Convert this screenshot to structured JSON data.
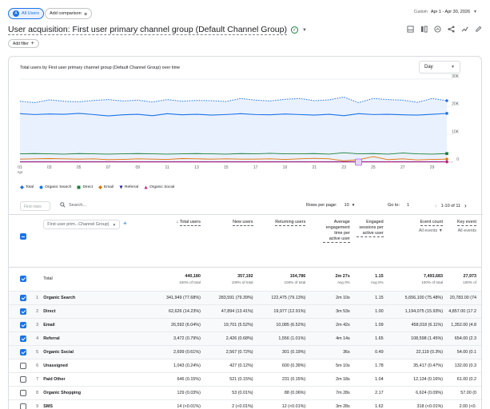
{
  "topbar": {
    "segment_badge": "A",
    "segment_label": "All Users",
    "add_comparison": "Add comparison",
    "date_label": "Custom",
    "date_range": "Apr 1 - Apr 30, 2026"
  },
  "report": {
    "title": "User acquisition: First user primary channel group (Default Channel Group)",
    "add_filter": "Add filter"
  },
  "chart": {
    "title": "Total users by First user primary channel group (Default Channel Group) over time",
    "interval": "Day",
    "y_ticks": [
      "30K",
      "20K",
      "10K",
      "0"
    ],
    "x_ticks": [
      "01",
      "03",
      "05",
      "07",
      "09",
      "11",
      "13",
      "15",
      "17",
      "19",
      "21",
      "23",
      "25",
      "27",
      "29"
    ],
    "x_month": "Apr",
    "annotation_icon": "note-icon",
    "legend": [
      {
        "name": "Total",
        "color": "#1a73e8",
        "shape": "diamond"
      },
      {
        "name": "Organic Search",
        "color": "#1a73e8",
        "shape": "circle"
      },
      {
        "name": "Direct",
        "color": "#188038",
        "shape": "square"
      },
      {
        "name": "Email",
        "color": "#e37400",
        "shape": "diamond"
      },
      {
        "name": "Referral",
        "color": "#1e1e8f",
        "shape": "triangle-down"
      },
      {
        "name": "Organic Social",
        "color": "#d01884",
        "shape": "triangle"
      }
    ]
  },
  "chart_data": {
    "type": "line",
    "x": [
      "01",
      "02",
      "03",
      "04",
      "05",
      "06",
      "07",
      "08",
      "09",
      "10",
      "11",
      "12",
      "13",
      "14",
      "15",
      "16",
      "17",
      "18",
      "19",
      "20",
      "21",
      "22",
      "23",
      "24",
      "25",
      "26",
      "27",
      "28",
      "29",
      "30"
    ],
    "ylim": [
      0,
      30000
    ],
    "series": [
      {
        "name": "Total",
        "values": [
          22000,
          21500,
          22500,
          22000,
          21800,
          22300,
          22600,
          22100,
          22400,
          21700,
          22600,
          22000,
          22300,
          22200,
          21900,
          23000,
          22400,
          22100,
          22700,
          23000,
          22200,
          22500,
          23500,
          21500,
          23000,
          22600,
          22400,
          21600,
          23000,
          22200
        ]
      },
      {
        "name": "Organic Search",
        "values": [
          17500,
          17200,
          17400,
          17300,
          17600,
          17200,
          16700,
          17100,
          17300,
          16800,
          17500,
          17100,
          17300,
          17000,
          17200,
          17500,
          17200,
          17100,
          17400,
          17200,
          17000,
          17300,
          16800,
          17500,
          17200,
          17300,
          17100,
          17000,
          17300,
          17600
        ]
      },
      {
        "name": "Direct",
        "values": [
          3000,
          3100,
          3000,
          2900,
          3100,
          3000,
          2900,
          3000,
          3100,
          3000,
          2900,
          3000,
          3100,
          3000,
          2900,
          3100,
          3000,
          3200,
          3000,
          3000,
          3100,
          2900,
          3400,
          3000,
          3100,
          2900,
          3300,
          3000,
          2900,
          3100
        ]
      },
      {
        "name": "Email",
        "values": [
          1100,
          1200,
          1300,
          1200,
          1100,
          1200,
          900,
          1000,
          1200,
          1100,
          1000,
          1300,
          1200,
          1100,
          1200,
          1100,
          1100,
          1200,
          1000,
          1200,
          1400,
          1200,
          500,
          900,
          2000,
          900,
          1200,
          800,
          1000,
          1100
        ]
      },
      {
        "name": "Referral",
        "values": [
          150,
          160,
          150,
          170,
          160,
          150,
          160,
          170,
          150,
          160,
          150,
          170,
          160,
          150,
          160,
          170,
          150,
          160,
          150,
          170,
          160,
          150,
          200,
          160,
          150,
          160,
          170,
          150,
          160,
          150
        ]
      },
      {
        "name": "Organic Social",
        "values": [
          100,
          90,
          100,
          110,
          90,
          100,
          100,
          90,
          110,
          100,
          90,
          100,
          110,
          90,
          100,
          90,
          110,
          100,
          90,
          100,
          110,
          90,
          100,
          100,
          90,
          110,
          100,
          90,
          100,
          110
        ]
      }
    ]
  },
  "table_controls": {
    "rows_placeholder": "First rows",
    "search_placeholder": "Search...",
    "rows_per_page_label": "Rows per page:",
    "rows_per_page": "10",
    "goto_label": "Go to:",
    "goto_value": "1",
    "page_info": "1-10 of 11"
  },
  "table": {
    "dimension_selector": "First user prim...Channel Group)",
    "columns": [
      {
        "label": "Total users",
        "sub": "",
        "sorted": true
      },
      {
        "label": "New users",
        "sub": ""
      },
      {
        "label": "Returning users",
        "sub": ""
      },
      {
        "label": "Average engagement time per active user",
        "sub": ""
      },
      {
        "label": "Engaged sessions per active user",
        "sub": ""
      },
      {
        "label": "Event count",
        "sub": "All events"
      },
      {
        "label": "Key event",
        "sub": "All events"
      }
    ],
    "total_label": "Total",
    "totals": [
      {
        "v": "440,180",
        "s": "100% of total"
      },
      {
        "v": "357,192",
        "s": "100% of total"
      },
      {
        "v": "154,786",
        "s": "100% of total"
      },
      {
        "v": "2m 27s",
        "s": "Avg 0%"
      },
      {
        "v": "1.15",
        "s": "Avg 0%"
      },
      {
        "v": "7,493,683",
        "s": "100% of total"
      },
      {
        "v": "27,973",
        "s": "100% of"
      }
    ],
    "rows": [
      {
        "n": "1",
        "name": "Organic Search",
        "checked": true,
        "c": [
          "341,949 (77.68%)",
          "283,591 (79.39%)",
          "122,475 (79.13%)",
          "2m 10s",
          "1.15",
          "5,656,100 (75.48%)",
          "20,783.00 (74"
        ]
      },
      {
        "n": "2",
        "name": "Direct",
        "checked": true,
        "c": [
          "62,626 (14.23%)",
          "47,894 (13.41%)",
          "19,977 (12.91%)",
          "3m 53s",
          "1.00",
          "1,194,075 (15.93%)",
          "4,857.00 (17.2"
        ]
      },
      {
        "n": "3",
        "name": "Email",
        "checked": true,
        "c": [
          "26,592 (6.04%)",
          "19,701 (5.52%)",
          "10,085 (6.52%)",
          "2m 42s",
          "1.09",
          "458,018 (6.11%)",
          "1,352.00 (4.8"
        ]
      },
      {
        "n": "4",
        "name": "Referral",
        "checked": true,
        "c": [
          "3,472 (0.79%)",
          "2,426 (0.68%)",
          "1,556 (1.01%)",
          "4m 14s",
          "1.65",
          "108,598 (1.45%)",
          "654.00 (2.3"
        ]
      },
      {
        "n": "5",
        "name": "Organic Social",
        "checked": true,
        "c": [
          "2,699 (0.61%)",
          "2,567 (0.72%)",
          "301 (0.19%)",
          "36s",
          "0.49",
          "22,119 (0.3%)",
          "54.00 (0.1"
        ]
      },
      {
        "n": "6",
        "name": "Unassigned",
        "checked": false,
        "c": [
          "1,043 (0.24%)",
          "427 (0.12%)",
          "600 (0.39%)",
          "5m 10s",
          "1.78",
          "35,417 (0.47%)",
          "132.00 (0.3"
        ]
      },
      {
        "n": "7",
        "name": "Paid Other",
        "checked": false,
        "c": [
          "646 (0.15%)",
          "521 (0.15%)",
          "231 (0.15%)",
          "2m 18s",
          "1.04",
          "12,134 (0.16%)",
          "61.00 (0.2"
        ]
      },
      {
        "n": "8",
        "name": "Organic Shopping",
        "checked": false,
        "c": [
          "129 (0.03%)",
          "53 (0.01%)",
          "88 (0.06%)",
          "7m 28s",
          "2.17",
          "6,624 (0.09%)",
          "57.00 (0"
        ]
      },
      {
        "n": "9",
        "name": "SMS",
        "checked": false,
        "c": [
          "14 (<0.01%)",
          "2 (<0.01%)",
          "12 (<0.01%)",
          "3m 28s",
          "1.62",
          "318 (<0.01%)",
          "2.00 (<0."
        ]
      },
      {
        "n": "10",
        "name": "Organic Video",
        "checked": false,
        "c": [
          "12 (<0.01%)",
          "10 (<0.01%)",
          "3 (<0.01%)",
          "43s",
          "0.73",
          "90 (<0.01%)",
          "0.00 ("
        ]
      }
    ]
  }
}
